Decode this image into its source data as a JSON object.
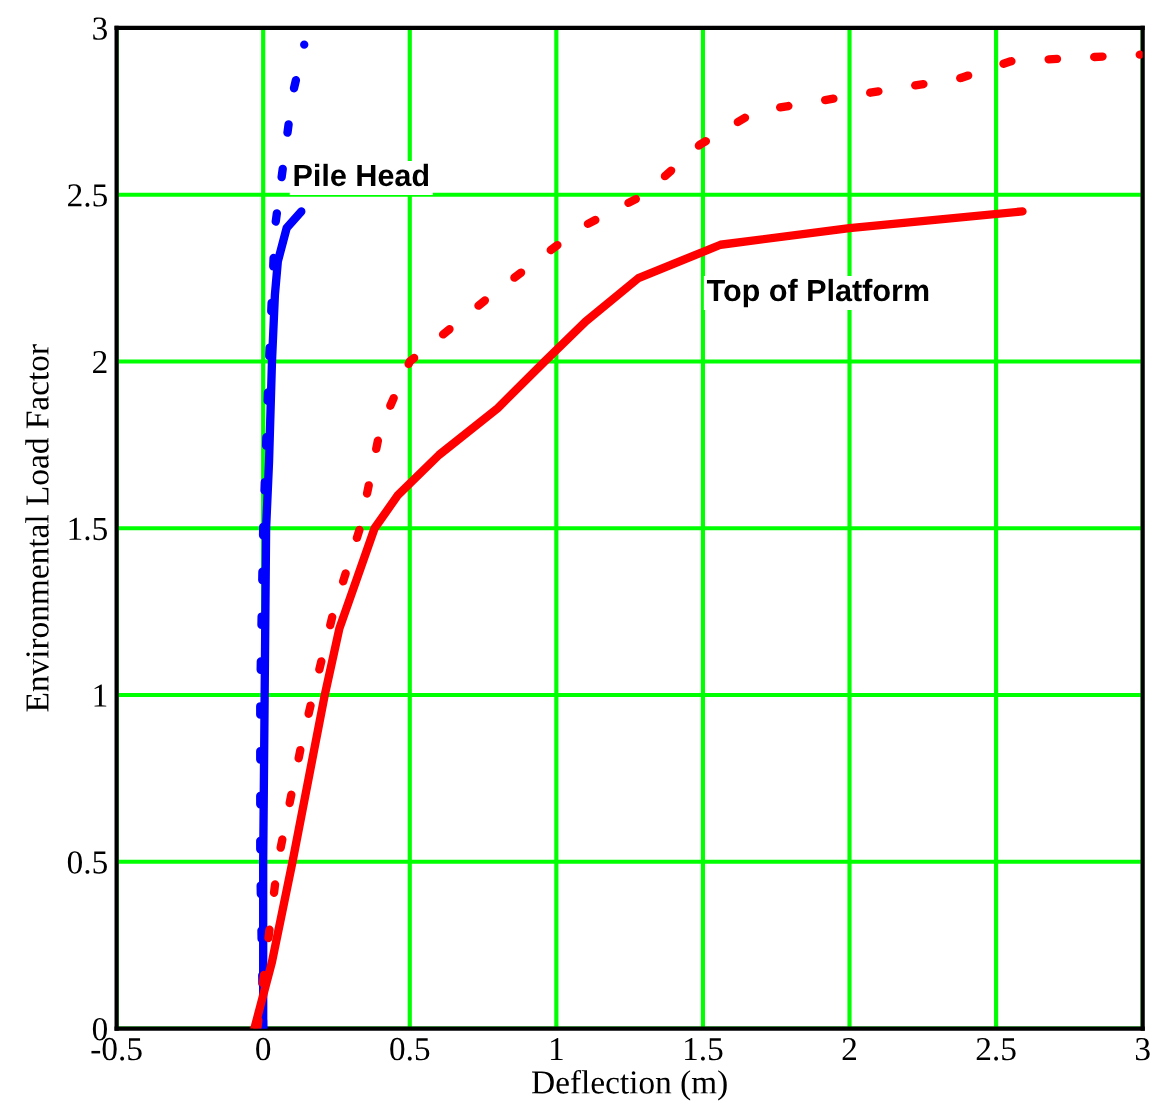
{
  "chart_data": {
    "type": "line",
    "xlabel": "Deflection (m)",
    "ylabel": "Environmental Load Factor",
    "xlim": [
      -0.5,
      3
    ],
    "ylim": [
      0,
      3
    ],
    "xticks": [
      -0.5,
      0,
      0.5,
      1,
      1.5,
      2,
      2.5,
      3
    ],
    "yticks": [
      0,
      0.5,
      1,
      1.5,
      2,
      2.5,
      3
    ],
    "grid": true,
    "legend": false,
    "marker": "none",
    "series": [
      {
        "color": "#0000ff",
        "line_style": "solid",
        "x": [
          0.0,
          0.0,
          0.005,
          0.01,
          0.02,
          0.03,
          0.04,
          0.05,
          0.08,
          0.13
        ],
        "values": [
          0.0,
          0.5,
          1.0,
          1.5,
          1.7,
          2.0,
          2.2,
          2.3,
          2.4,
          2.45
        ]
      },
      {
        "color": "#0000ff",
        "line_style": "dotted",
        "x": [
          0.0,
          -0.01,
          -0.01,
          0.0,
          0.02,
          0.04,
          0.07,
          0.1,
          0.14
        ],
        "values": [
          0.0,
          0.5,
          1.0,
          1.5,
          2.0,
          2.4,
          2.6,
          2.8,
          2.95
        ]
      },
      {
        "color": "#ff0000",
        "line_style": "solid",
        "x": [
          -0.03,
          0.03,
          0.1,
          0.21,
          0.26,
          0.32,
          0.38,
          0.46,
          0.6,
          0.8,
          0.96,
          1.1,
          1.28,
          1.56,
          2.0,
          2.59
        ],
        "values": [
          0.0,
          0.2,
          0.5,
          1.0,
          1.2,
          1.35,
          1.5,
          1.6,
          1.72,
          1.86,
          2.0,
          2.12,
          2.25,
          2.35,
          2.4,
          2.45
        ]
      },
      {
        "color": "#ff0000",
        "line_style": "dotted",
        "x": [
          -0.02,
          0.05,
          0.13,
          0.17,
          0.24,
          0.33,
          0.4,
          0.5,
          0.78,
          1.08,
          1.3,
          1.49,
          1.68,
          2.03,
          2.38,
          2.55,
          2.99
        ],
        "values": [
          0.0,
          0.5,
          0.85,
          1.0,
          1.25,
          1.5,
          1.8,
          2.0,
          2.2,
          2.4,
          2.5,
          2.65,
          2.75,
          2.8,
          2.85,
          2.9,
          2.92
        ]
      }
    ],
    "annotations": [
      {
        "text": "Pile Head",
        "x": 0.1,
        "y": 2.55
      },
      "Top of Platform"
    ]
  }
}
